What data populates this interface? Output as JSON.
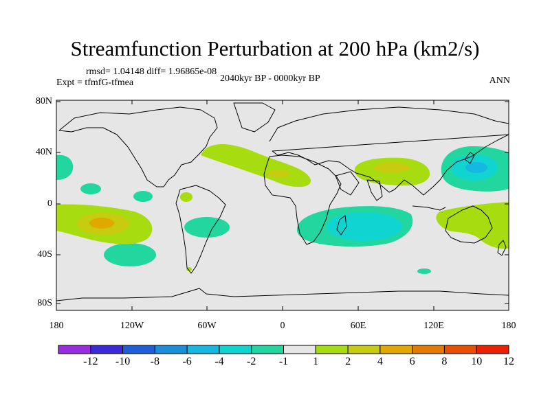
{
  "title": "Streamfunction Perturbation at 200 hPa (km2/s)",
  "stats": "rmsd= 1.04148 diff= 1.96865e-08",
  "expt": "Expt = tfmfG-tfmea",
  "period": "2040kyr BP - 0000kyr BP",
  "season": "ANN",
  "lat_labels": [
    "80N",
    "40N",
    "0",
    "40S",
    "80S"
  ],
  "lon_labels": [
    "180",
    "120W",
    "60W",
    "0",
    "60E",
    "120E",
    "180"
  ],
  "colorbar": {
    "labels": [
      "-12",
      "-10",
      "-8",
      "-6",
      "-4",
      "-2",
      "-1",
      "1",
      "2",
      "4",
      "6",
      "8",
      "10",
      "12"
    ],
    "colors": [
      "#9a2ce0",
      "#3a2ad8",
      "#1e5ed8",
      "#1a8fd8",
      "#14b8e0",
      "#10d4d0",
      "#22d6a0",
      "#e6e6e6",
      "#a6dc10",
      "#c8cc10",
      "#e0a800",
      "#e47a00",
      "#e85000",
      "#ea2000"
    ]
  },
  "background_color": "#e6e6e6",
  "anomaly_features": [
    {
      "name": "anomaly-north-atlantic",
      "level": "1"
    },
    {
      "name": "anomaly-north-africa",
      "level": "2"
    },
    {
      "name": "anomaly-asia",
      "level": "2"
    },
    {
      "name": "anomaly-north-pacific",
      "level": "-2"
    },
    {
      "name": "anomaly-south-indian",
      "level": "-2"
    },
    {
      "name": "anomaly-south-pacific",
      "level": "4"
    },
    {
      "name": "anomaly-australia",
      "level": "1"
    }
  ]
}
